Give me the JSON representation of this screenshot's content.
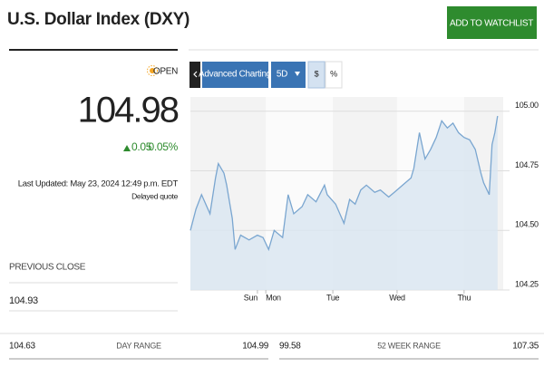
{
  "header": {
    "title": "U.S. Dollar Index (DXY)",
    "button": "ADD TO WATCHLIST"
  },
  "quote": {
    "status": "OPEN",
    "price": "104.98",
    "change": "0.05",
    "change_percent": "0.05%",
    "last_updated": "Last Updated: May 23, 2024 12:49 p.m. EDT",
    "delayed": "Delayed quote"
  },
  "previous_close": {
    "label": "PREVIOUS CLOSE",
    "value": "104.93"
  },
  "toolbar": {
    "advanced": "Advanced Charting",
    "period": "5D",
    "dollar": "$",
    "percent": "%"
  },
  "chart_data": {
    "type": "area",
    "color": "#7aa6d0",
    "x": [
      0,
      2,
      4,
      7,
      9,
      10,
      12,
      13,
      15,
      16,
      18,
      21,
      24,
      26,
      28,
      30,
      33,
      35,
      37,
      40,
      42,
      45,
      48,
      49,
      52,
      55,
      57,
      59,
      61,
      63,
      66,
      68,
      71,
      73,
      76,
      79,
      80,
      82,
      84,
      86,
      88,
      90,
      92,
      94,
      96,
      98,
      100,
      102,
      104,
      105,
      107,
      108,
      109,
      110
    ],
    "values": [
      104.5,
      104.59,
      104.65,
      104.57,
      104.72,
      104.78,
      104.74,
      104.69,
      104.55,
      104.42,
      104.48,
      104.46,
      104.48,
      104.47,
      104.42,
      104.5,
      104.47,
      104.65,
      104.57,
      104.6,
      104.65,
      104.62,
      104.69,
      104.65,
      104.61,
      104.53,
      104.63,
      104.61,
      104.67,
      104.69,
      104.66,
      104.67,
      104.64,
      104.66,
      104.69,
      104.72,
      104.76,
      104.91,
      104.8,
      104.84,
      104.89,
      104.96,
      104.93,
      104.95,
      104.91,
      104.89,
      104.88,
      104.84,
      104.74,
      104.7,
      104.65,
      104.86,
      104.91,
      104.98
    ],
    "xlim": [
      0,
      112
    ],
    "ylim": [
      104.25,
      105.06
    ],
    "xticks": [
      {
        "value": 24,
        "label": "Sun"
      },
      {
        "value": 27,
        "label": "Mon"
      },
      {
        "value": 51,
        "label": "Tue"
      },
      {
        "value": 74,
        "label": "Wed"
      },
      {
        "value": 98,
        "label": "Thu"
      }
    ],
    "yticks": [
      {
        "value": 104.25,
        "label": "104.25"
      },
      {
        "value": 104.5,
        "label": "104.50"
      },
      {
        "value": 104.75,
        "label": "104.75"
      },
      {
        "value": 105,
        "label": "105.00"
      }
    ],
    "grid": true
  },
  "ranges": [
    {
      "low": "104.63",
      "label": "DAY RANGE",
      "high": "104.99"
    },
    {
      "low": "99.58",
      "label": "52 WEEK RANGE",
      "high": "107.35"
    }
  ]
}
